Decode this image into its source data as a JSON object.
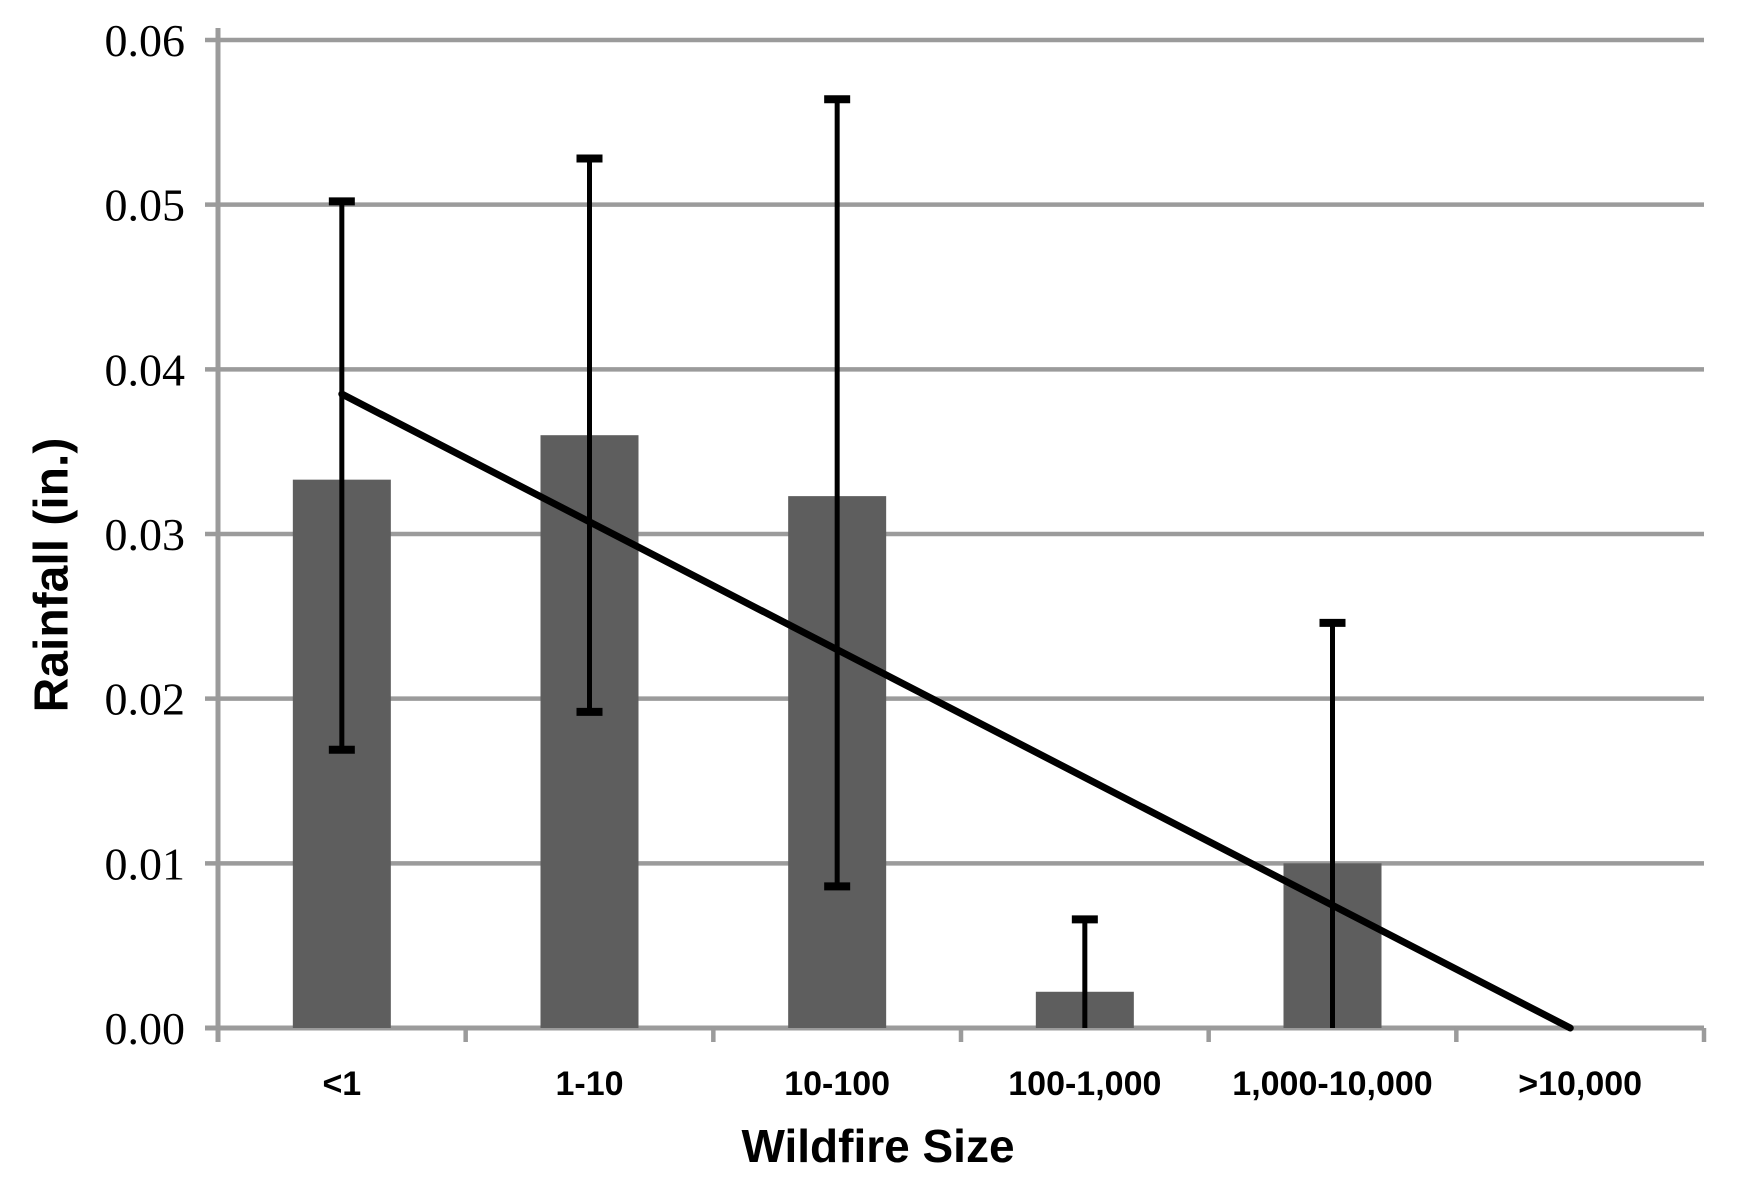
{
  "chart_data": {
    "type": "bar",
    "title": "",
    "xlabel": "Wildfire Size",
    "ylabel": "Rainfall (in.)",
    "categories": [
      "<1",
      "1-10",
      "10-100",
      "100-1,000",
      "1,000-10,000",
      ">10,000"
    ],
    "values": [
      0.0333,
      0.036,
      0.0323,
      0.0022,
      0.01,
      null
    ],
    "error_bars": {
      "whisker_top": [
        0.0502,
        0.0528,
        0.0564,
        0.0066,
        0.0246,
        null
      ],
      "whisker_bottom": [
        0.0169,
        0.0192,
        0.0086,
        0.0,
        0.0,
        null
      ],
      "bottom_cap": [
        true,
        true,
        true,
        false,
        false,
        false
      ]
    },
    "trendline": {
      "start_category_pos": 0.5,
      "start_value": 0.0385,
      "end_category_pos": 5.46,
      "end_value": 0.0
    },
    "ylim": [
      0,
      0.06
    ],
    "ytick_labels": [
      "0.00",
      "0.01",
      "0.02",
      "0.03",
      "0.04",
      "0.05",
      "0.06"
    ],
    "ytick_values": [
      0.0,
      0.01,
      0.02,
      0.03,
      0.04,
      0.05,
      0.06
    ],
    "grid": true,
    "legend": "none",
    "colors": {
      "bar_fill": "#5e5e5e",
      "grid_line": "#9b9b9b",
      "axis_line": "#9b9b9b",
      "error_bar": "#000000",
      "trend_line": "#000000",
      "text": "#000000"
    }
  }
}
